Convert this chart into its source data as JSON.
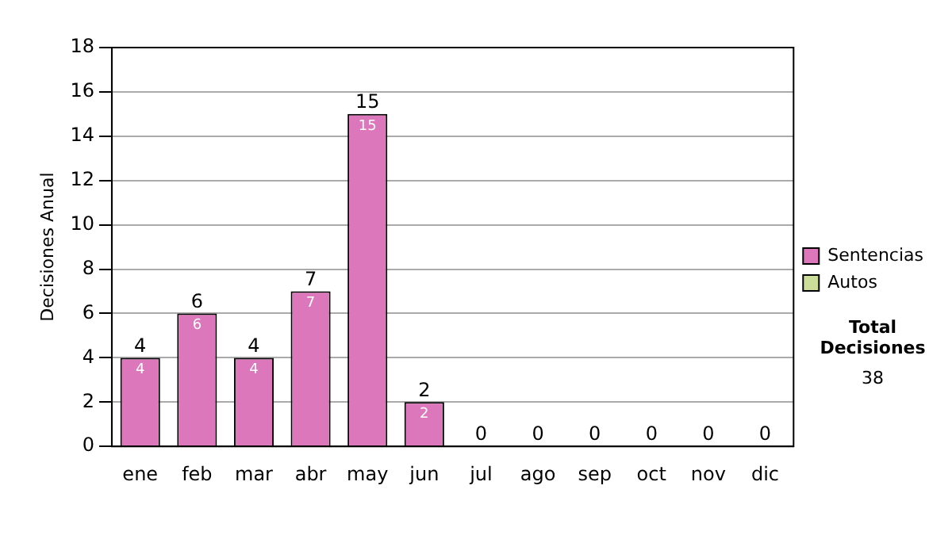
{
  "chart_data": {
    "type": "bar",
    "ylabel": "Decisiones Anual",
    "categories": [
      "ene",
      "feb",
      "mar",
      "abr",
      "may",
      "jun",
      "jul",
      "ago",
      "sep",
      "oct",
      "nov",
      "dic"
    ],
    "series": [
      {
        "name": "Sentencias",
        "color": "#dd77bb",
        "values": [
          4,
          6,
          4,
          7,
          15,
          2,
          0,
          0,
          0,
          0,
          0,
          0
        ],
        "value_labels": [
          "4",
          "6",
          "4",
          "7",
          "15",
          "2",
          null,
          null,
          null,
          null,
          null,
          null
        ]
      },
      {
        "name": "Autos",
        "color": "#ccdd99",
        "values": [
          0,
          0,
          0,
          0,
          0,
          0,
          0,
          0,
          0,
          0,
          0,
          0
        ]
      }
    ],
    "stacked": true,
    "totals": [
      "4",
      "6",
      "4",
      "7",
      "15",
      "2",
      "0",
      "0",
      "0",
      "0",
      "0",
      "0"
    ],
    "ylim": [
      0,
      18
    ],
    "yticks": [
      0,
      2,
      4,
      6,
      8,
      10,
      12,
      14,
      16,
      18
    ],
    "grid": "y",
    "legend": "right",
    "annotations": [
      "Total Decisiones",
      "38"
    ]
  }
}
